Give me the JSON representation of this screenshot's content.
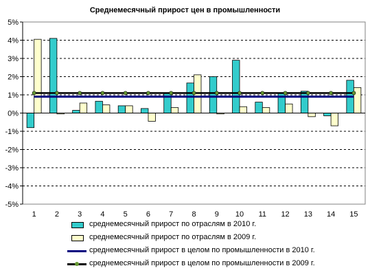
{
  "chart_data": {
    "type": "bar",
    "title": "Среднемесячный прирост цен в промышленности",
    "xlabel": "",
    "ylabel": "",
    "categories": [
      "1",
      "2",
      "3",
      "4",
      "5",
      "6",
      "7",
      "8",
      "9",
      "10",
      "11",
      "12",
      "13",
      "14",
      "15"
    ],
    "ylim": [
      -5,
      5
    ],
    "yticks": [
      5,
      4,
      3,
      2,
      1,
      0,
      -1,
      -2,
      -3,
      -4,
      -5
    ],
    "ytick_labels": [
      "5%",
      "4%",
      "3%",
      "2%",
      "1%",
      "0%",
      "-1%",
      "-2%",
      "-3%",
      "-4%",
      "-5%"
    ],
    "grid": "horizontal-dashed",
    "legend_position": "bottom",
    "series": [
      {
        "name": "среднемесячный прирост по отраслям в 2010 г.",
        "kind": "bar",
        "color": "#33cccc",
        "values": [
          -0.8,
          4.1,
          0.15,
          0.65,
          0.4,
          0.25,
          1.1,
          1.65,
          2.0,
          2.9,
          0.6,
          1.1,
          1.2,
          -0.15,
          1.8
        ]
      },
      {
        "name": "среднемесячный прирост по отраслям в 2009 г.",
        "kind": "bar",
        "color": "#ffffcc",
        "values": [
          4.05,
          -0.05,
          0.55,
          0.45,
          0.4,
          -0.45,
          0.3,
          2.1,
          -0.05,
          0.35,
          0.3,
          0.5,
          -0.2,
          -0.7,
          1.4
        ]
      },
      {
        "name": "среднемесячный прирост в целом по промышленности в 2010 г.",
        "kind": "line",
        "color": "#000080",
        "values": [
          0.9,
          0.9,
          0.9,
          0.9,
          0.9,
          0.9,
          0.9,
          0.9,
          0.9,
          0.9,
          0.9,
          0.9,
          0.9,
          0.9,
          0.9
        ]
      },
      {
        "name": "среднемесячный прирост в целом по промышленности в 2009 г.",
        "kind": "line-marker",
        "color": "#000000",
        "marker_color": "#669933",
        "values": [
          1.1,
          1.1,
          1.1,
          1.1,
          1.1,
          1.1,
          1.1,
          1.1,
          1.1,
          1.1,
          1.1,
          1.1,
          1.1,
          1.1,
          1.1
        ]
      }
    ]
  }
}
